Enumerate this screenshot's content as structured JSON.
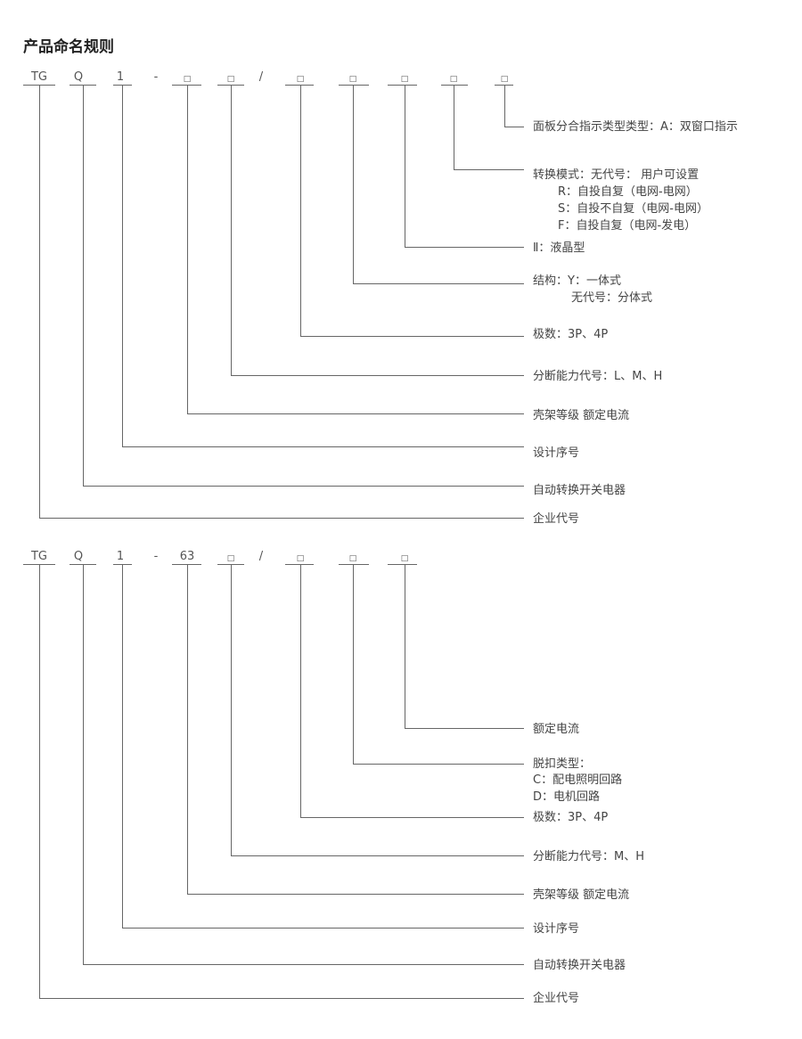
{
  "title": "产品命名规则",
  "diagram1": {
    "codes": [
      "TG",
      "Q",
      "1",
      "-",
      "□",
      "□",
      "/",
      "□",
      "□",
      "□",
      "□",
      "□"
    ],
    "labels": {
      "panel": "面板分合指示类型类型：A：双窗口指示",
      "mode": [
        "转换模式：无代号： 用户可设置",
        "R：自投自复（电网-电网）",
        "S：自投不自复（电网-电网）",
        "F：自投自复（电网-发电）"
      ],
      "lcd": "Ⅱ：液晶型",
      "structure": [
        "结构：Y：一体式",
        "无代号：分体式"
      ],
      "poles": "极数：3P、4P",
      "breaking": "分断能力代号：L、M、H",
      "frame": "壳架等级 额定电流",
      "design": "设计序号",
      "ats": "自动转换开关电器",
      "company": "企业代号"
    }
  },
  "diagram2": {
    "codes": [
      "TG",
      "Q",
      "1",
      "-",
      "63",
      "□",
      "/",
      "□",
      "□",
      "□"
    ],
    "labels": {
      "current": "额定电流",
      "trip": [
        "脱扣类型：",
        "C：配电照明回路",
        "D：电机回路"
      ],
      "poles": "极数：3P、4P",
      "breaking": "分断能力代号：M、H",
      "frame": "壳架等级 额定电流",
      "design": "设计序号",
      "ats": "自动转换开关电器",
      "company": "企业代号"
    }
  }
}
